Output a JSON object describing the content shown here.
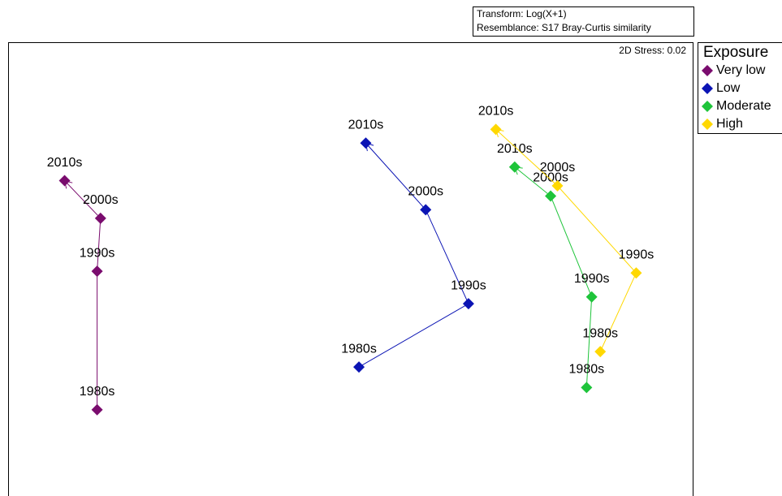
{
  "chart_data": {
    "type": "scatter",
    "transform": "Transform: Log(X+1)",
    "resemblance": "Resemblance: S17 Bray-Curtis similarity",
    "stress": "2D Stress: 0.02",
    "legend_title": "Exposure",
    "xlim": [
      -2,
      2
    ],
    "ylim": [
      -1.4,
      1.25
    ],
    "series": [
      {
        "name": "Very low",
        "color": "#7a0c6e",
        "labels": [
          "1980s",
          "1990s",
          "2000s",
          "2010s"
        ],
        "x": [
          -1.48,
          -1.48,
          -1.46,
          -1.67
        ],
        "y": [
          -0.9,
          -0.09,
          0.22,
          0.44
        ]
      },
      {
        "name": "Low",
        "color": "#0b14b4",
        "labels": [
          "1980s",
          "1990s",
          "2000s",
          "2010s"
        ],
        "x": [
          0.05,
          0.69,
          0.44,
          0.09
        ],
        "y": [
          -0.65,
          -0.28,
          0.27,
          0.66
        ]
      },
      {
        "name": "Moderate",
        "color": "#1ec43a",
        "labels": [
          "1980s",
          "1990s",
          "2000s",
          "2010s"
        ],
        "x": [
          1.38,
          1.41,
          1.17,
          0.96
        ],
        "y": [
          -0.77,
          -0.24,
          0.35,
          0.52
        ]
      },
      {
        "name": "High",
        "color": "#ffd800",
        "labels": [
          "1980s",
          "1990s",
          "2000s",
          "2010s"
        ],
        "x": [
          1.46,
          1.67,
          1.21,
          0.85
        ],
        "y": [
          -0.56,
          -0.1,
          0.41,
          0.74
        ]
      }
    ]
  }
}
